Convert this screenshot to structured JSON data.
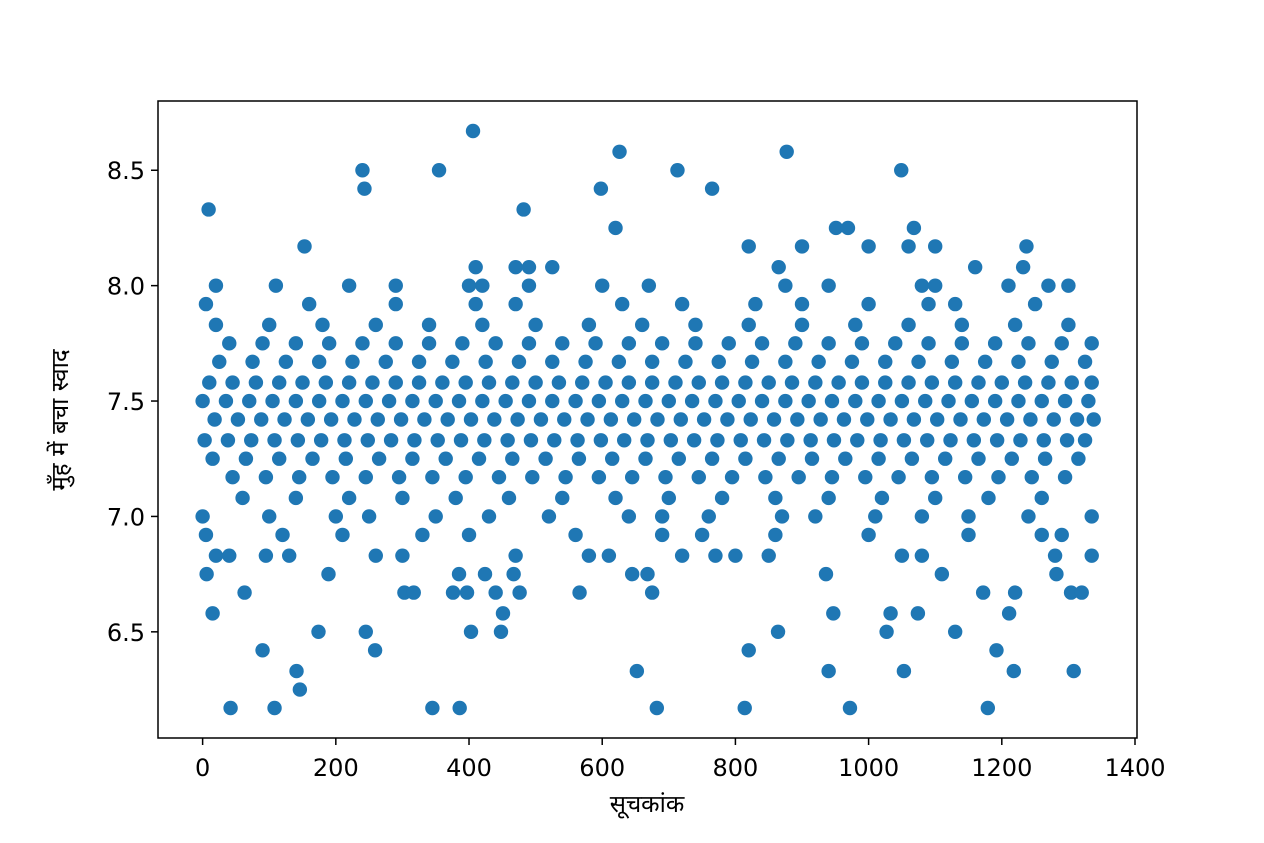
{
  "chart_data": {
    "type": "scatter",
    "xlabel": "सूचकांक",
    "ylabel": "मुँह में बचा स्वाद",
    "color": "#1f77b4",
    "xlim": [
      -67,
      1403
    ],
    "ylim": [
      6.04,
      8.8
    ],
    "xticks": [
      0,
      200,
      400,
      600,
      800,
      1000,
      1200,
      1400
    ],
    "yticks": [
      6.5,
      {
        "value": 7,
        "label": "7.0"
      },
      7.5,
      {
        "value": 8,
        "label": "8.0"
      },
      8.5
    ],
    "x": [
      0,
      35,
      70,
      105,
      140,
      175,
      210,
      245,
      280,
      315,
      350,
      385,
      420,
      455,
      490,
      525,
      560,
      595,
      630,
      665,
      700,
      735,
      770,
      805,
      840,
      875,
      910,
      945,
      980,
      1015,
      1050,
      1085,
      1120,
      1155,
      1190,
      1225,
      1260,
      1295,
      1330,
      18,
      53,
      88,
      123,
      158,
      193,
      228,
      263,
      298,
      333,
      368,
      403,
      438,
      473,
      508,
      543,
      578,
      613,
      648,
      683,
      718,
      753,
      788,
      823,
      858,
      893,
      928,
      963,
      998,
      1033,
      1068,
      1103,
      1138,
      1173,
      1208,
      1243,
      1278,
      1313,
      1338,
      10,
      45,
      80,
      115,
      150,
      185,
      220,
      255,
      290,
      325,
      360,
      395,
      430,
      465,
      500,
      535,
      570,
      605,
      640,
      675,
      710,
      745,
      780,
      815,
      850,
      885,
      920,
      955,
      990,
      1025,
      1060,
      1095,
      1130,
      1165,
      1200,
      1235,
      1270,
      1305,
      1335,
      3,
      38,
      73,
      108,
      143,
      178,
      213,
      248,
      283,
      318,
      353,
      388,
      423,
      458,
      493,
      528,
      563,
      598,
      633,
      668,
      703,
      738,
      773,
      808,
      843,
      878,
      913,
      948,
      983,
      1018,
      1053,
      1088,
      1123,
      1158,
      1193,
      1228,
      1263,
      1298,
      1325,
      25,
      75,
      125,
      175,
      225,
      275,
      325,
      375,
      425,
      475,
      525,
      575,
      625,
      675,
      725,
      775,
      825,
      875,
      925,
      975,
      1025,
      1075,
      1125,
      1175,
      1225,
      1275,
      1325,
      15,
      65,
      115,
      165,
      215,
      265,
      315,
      365,
      415,
      465,
      515,
      565,
      615,
      665,
      715,
      765,
      815,
      865,
      915,
      965,
      1015,
      1065,
      1115,
      1165,
      1215,
      1265,
      1315,
      40,
      90,
      140,
      190,
      240,
      290,
      340,
      390,
      440,
      490,
      540,
      590,
      640,
      690,
      740,
      790,
      840,
      890,
      940,
      990,
      1040,
      1090,
      1140,
      1190,
      1240,
      1290,
      1335,
      45,
      95,
      145,
      195,
      245,
      295,
      345,
      395,
      445,
      495,
      545,
      595,
      645,
      695,
      745,
      795,
      845,
      895,
      945,
      995,
      1045,
      1095,
      1145,
      1195,
      1245,
      1295,
      20,
      100,
      180,
      260,
      340,
      420,
      500,
      580,
      660,
      740,
      820,
      900,
      980,
      1060,
      1140,
      1220,
      1300,
      60,
      140,
      220,
      300,
      380,
      460,
      540,
      620,
      700,
      780,
      860,
      940,
      1020,
      1100,
      1180,
      1260,
      0,
      100,
      200,
      250,
      350,
      430,
      520,
      640,
      690,
      760,
      870,
      920,
      1010,
      1080,
      1150,
      1240,
      1335,
      5,
      160,
      290,
      410,
      470,
      630,
      720,
      830,
      900,
      1000,
      1090,
      1130,
      1250,
      5,
      120,
      210,
      330,
      400,
      560,
      690,
      750,
      860,
      1000,
      1150,
      1260,
      1290,
      20,
      110,
      220,
      290,
      400,
      420,
      490,
      600,
      670,
      875,
      940,
      1080,
      1100,
      1210,
      1270,
      1300,
      20,
      40,
      95,
      130,
      260,
      300,
      470,
      580,
      610,
      720,
      770,
      800,
      850,
      1050,
      1080,
      1280,
      1335,
      410,
      470,
      490,
      525,
      865,
      1160,
      1232,
      153,
      820,
      900,
      1000,
      1060,
      1100,
      1237,
      9,
      482,
      240,
      355,
      713,
      1049,
      243,
      598,
      765,
      406,
      626,
      877,
      620,
      951,
      969,
      1068,
      42,
      108,
      345,
      386,
      682,
      814,
      972,
      1179,
      141,
      652,
      940,
      1053,
      1218,
      1308,
      146,
      90,
      259,
      820,
      1192,
      174,
      245,
      403,
      448,
      864,
      1027,
      1130,
      15,
      451,
      947,
      1033,
      1074,
      1211,
      63,
      303,
      317,
      376,
      397,
      440,
      476,
      566,
      675,
      1172,
      1220,
      1304,
      1320,
      6,
      189,
      385,
      424,
      467,
      645,
      668,
      936,
      1110,
      1282
    ],
    "y": [
      7.5,
      7.5,
      7.5,
      7.5,
      7.5,
      7.5,
      7.5,
      7.5,
      7.5,
      7.5,
      7.5,
      7.5,
      7.5,
      7.5,
      7.5,
      7.5,
      7.5,
      7.5,
      7.5,
      7.5,
      7.5,
      7.5,
      7.5,
      7.5,
      7.5,
      7.5,
      7.5,
      7.5,
      7.5,
      7.5,
      7.5,
      7.5,
      7.5,
      7.5,
      7.5,
      7.5,
      7.5,
      7.5,
      7.5,
      7.42,
      7.42,
      7.42,
      7.42,
      7.42,
      7.42,
      7.42,
      7.42,
      7.42,
      7.42,
      7.42,
      7.42,
      7.42,
      7.42,
      7.42,
      7.42,
      7.42,
      7.42,
      7.42,
      7.42,
      7.42,
      7.42,
      7.42,
      7.42,
      7.42,
      7.42,
      7.42,
      7.42,
      7.42,
      7.42,
      7.42,
      7.42,
      7.42,
      7.42,
      7.42,
      7.42,
      7.42,
      7.42,
      7.42,
      7.58,
      7.58,
      7.58,
      7.58,
      7.58,
      7.58,
      7.58,
      7.58,
      7.58,
      7.58,
      7.58,
      7.58,
      7.58,
      7.58,
      7.58,
      7.58,
      7.58,
      7.58,
      7.58,
      7.58,
      7.58,
      7.58,
      7.58,
      7.58,
      7.58,
      7.58,
      7.58,
      7.58,
      7.58,
      7.58,
      7.58,
      7.58,
      7.58,
      7.58,
      7.58,
      7.58,
      7.58,
      7.58,
      7.58,
      7.33,
      7.33,
      7.33,
      7.33,
      7.33,
      7.33,
      7.33,
      7.33,
      7.33,
      7.33,
      7.33,
      7.33,
      7.33,
      7.33,
      7.33,
      7.33,
      7.33,
      7.33,
      7.33,
      7.33,
      7.33,
      7.33,
      7.33,
      7.33,
      7.33,
      7.33,
      7.33,
      7.33,
      7.33,
      7.33,
      7.33,
      7.33,
      7.33,
      7.33,
      7.33,
      7.33,
      7.33,
      7.33,
      7.33,
      7.67,
      7.67,
      7.67,
      7.67,
      7.67,
      7.67,
      7.67,
      7.67,
      7.67,
      7.67,
      7.67,
      7.67,
      7.67,
      7.67,
      7.67,
      7.67,
      7.67,
      7.67,
      7.67,
      7.67,
      7.67,
      7.67,
      7.67,
      7.67,
      7.67,
      7.67,
      7.67,
      7.25,
      7.25,
      7.25,
      7.25,
      7.25,
      7.25,
      7.25,
      7.25,
      7.25,
      7.25,
      7.25,
      7.25,
      7.25,
      7.25,
      7.25,
      7.25,
      7.25,
      7.25,
      7.25,
      7.25,
      7.25,
      7.25,
      7.25,
      7.25,
      7.25,
      7.25,
      7.25,
      7.75,
      7.75,
      7.75,
      7.75,
      7.75,
      7.75,
      7.75,
      7.75,
      7.75,
      7.75,
      7.75,
      7.75,
      7.75,
      7.75,
      7.75,
      7.75,
      7.75,
      7.75,
      7.75,
      7.75,
      7.75,
      7.75,
      7.75,
      7.75,
      7.75,
      7.75,
      7.75,
      7.17,
      7.17,
      7.17,
      7.17,
      7.17,
      7.17,
      7.17,
      7.17,
      7.17,
      7.17,
      7.17,
      7.17,
      7.17,
      7.17,
      7.17,
      7.17,
      7.17,
      7.17,
      7.17,
      7.17,
      7.17,
      7.17,
      7.17,
      7.17,
      7.17,
      7.17,
      7.83,
      7.83,
      7.83,
      7.83,
      7.83,
      7.83,
      7.83,
      7.83,
      7.83,
      7.83,
      7.83,
      7.83,
      7.83,
      7.83,
      7.83,
      7.83,
      7.83,
      7.08,
      7.08,
      7.08,
      7.08,
      7.08,
      7.08,
      7.08,
      7.08,
      7.08,
      7.08,
      7.08,
      7.08,
      7.08,
      7.08,
      7.08,
      7.08,
      7.0,
      7.0,
      7.0,
      7.0,
      7.0,
      7.0,
      7.0,
      7.0,
      7.0,
      7.0,
      7.0,
      7.0,
      7.0,
      7.0,
      7.0,
      7.0,
      7.0,
      7.92,
      7.92,
      7.92,
      7.92,
      7.92,
      7.92,
      7.92,
      7.92,
      7.92,
      7.92,
      7.92,
      7.92,
      7.92,
      6.92,
      6.92,
      6.92,
      6.92,
      6.92,
      6.92,
      6.92,
      6.92,
      6.92,
      6.92,
      6.92,
      6.92,
      6.92,
      8.0,
      8.0,
      8.0,
      8.0,
      8.0,
      8.0,
      8.0,
      8.0,
      8.0,
      8.0,
      8.0,
      8.0,
      8.0,
      8.0,
      8.0,
      8.0,
      6.83,
      6.83,
      6.83,
      6.83,
      6.83,
      6.83,
      6.83,
      6.83,
      6.83,
      6.83,
      6.83,
      6.83,
      6.83,
      6.83,
      6.83,
      6.83,
      6.83,
      8.08,
      8.08,
      8.08,
      8.08,
      8.08,
      8.08,
      8.08,
      8.17,
      8.17,
      8.17,
      8.17,
      8.17,
      8.17,
      8.17,
      8.33,
      8.33,
      8.5,
      8.5,
      8.5,
      8.5,
      8.42,
      8.42,
      8.42,
      8.67,
      8.58,
      8.58,
      8.25,
      8.25,
      8.25,
      8.25,
      6.17,
      6.17,
      6.17,
      6.17,
      6.17,
      6.17,
      6.17,
      6.17,
      6.33,
      6.33,
      6.33,
      6.33,
      6.33,
      6.33,
      6.25,
      6.42,
      6.42,
      6.42,
      6.42,
      6.5,
      6.5,
      6.5,
      6.5,
      6.5,
      6.5,
      6.5,
      6.58,
      6.58,
      6.58,
      6.58,
      6.58,
      6.58,
      6.67,
      6.67,
      6.67,
      6.67,
      6.67,
      6.67,
      6.67,
      6.67,
      6.67,
      6.67,
      6.67,
      6.67,
      6.67,
      6.75,
      6.75,
      6.75,
      6.75,
      6.75,
      6.75,
      6.75,
      6.75,
      6.75,
      6.75
    ]
  }
}
